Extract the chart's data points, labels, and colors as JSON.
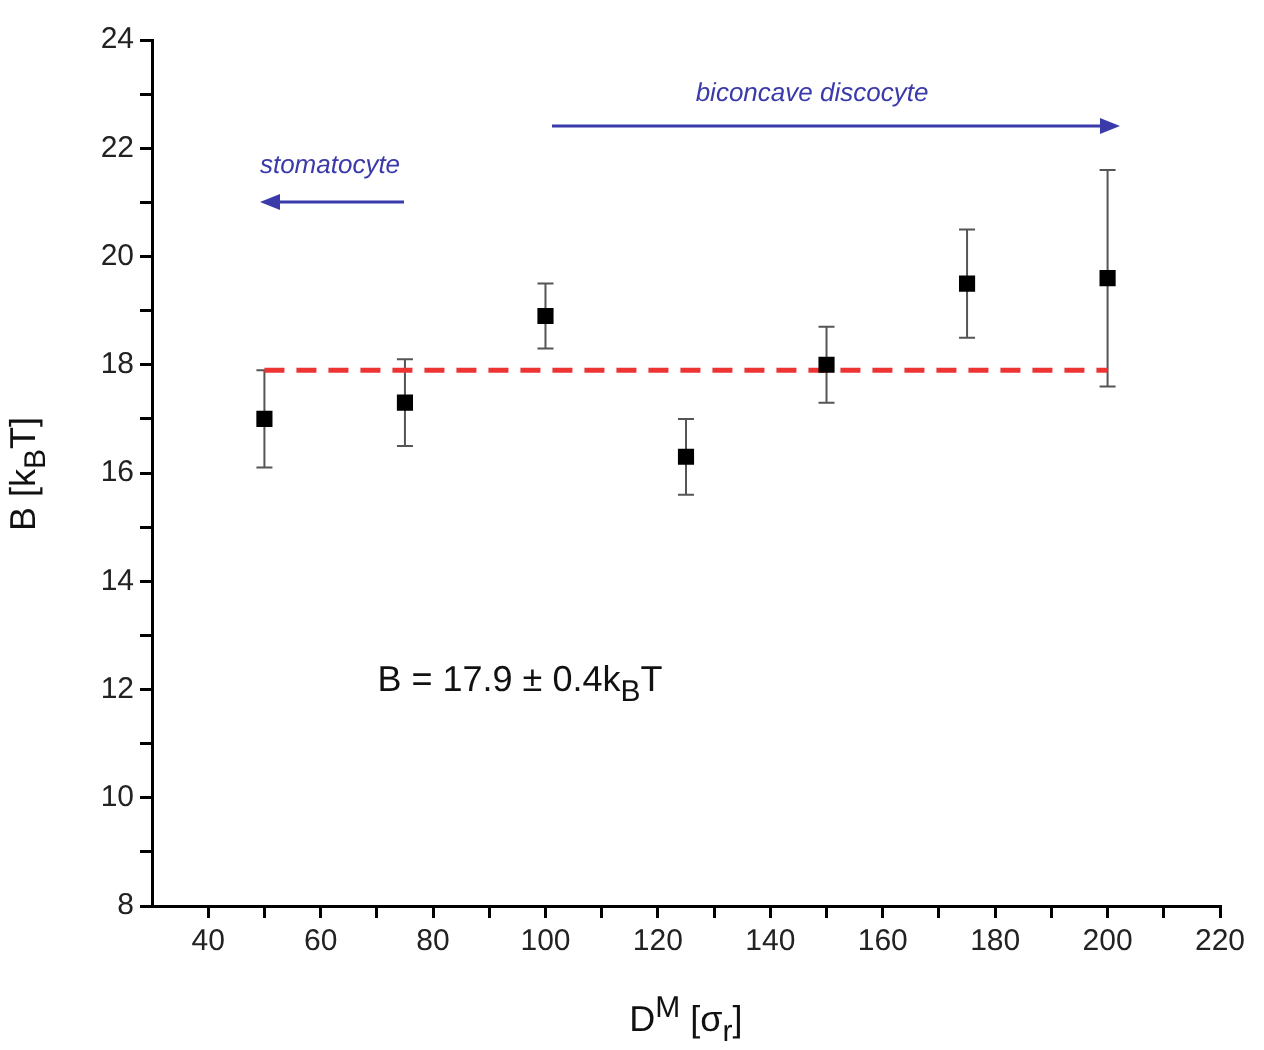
{
  "chart_data": {
    "type": "scatter",
    "xlabel": "D$^{M}$ [σ$_{r}$]",
    "ylabel": "B [k$_{B}$T]",
    "xlim": [
      30,
      220
    ],
    "ylim": [
      8,
      24
    ],
    "xticks": [
      40,
      {
        "value": 50,
        "label": null
      },
      60,
      {
        "value": 70,
        "label": null
      },
      80,
      {
        "value": 90,
        "label": null
      },
      100,
      {
        "value": 110,
        "label": null
      },
      120,
      {
        "value": 130,
        "label": null
      },
      140,
      {
        "value": 150,
        "label": null
      },
      160,
      {
        "value": 170,
        "label": null
      },
      180,
      {
        "value": 190,
        "label": null
      },
      200,
      {
        "value": 210,
        "label": null
      },
      220
    ],
    "yticks": [
      8,
      {
        "value": 9,
        "label": null
      },
      10,
      {
        "value": 11,
        "label": null
      },
      12,
      {
        "value": 13,
        "label": null
      },
      14,
      {
        "value": 15,
        "label": null
      },
      16,
      {
        "value": 17,
        "label": null
      },
      18,
      {
        "value": 19,
        "label": null
      },
      20,
      {
        "value": 21,
        "label": null
      },
      22,
      {
        "value": 23,
        "label": null
      },
      24
    ],
    "grid": false,
    "legend": false,
    "series": [
      {
        "type": "scatter",
        "color": "#000000",
        "marker": "square",
        "x": [
          50,
          75,
          100,
          125,
          150,
          175,
          200
        ],
        "values": [
          17.0,
          17.3,
          18.9,
          16.3,
          18.0,
          19.5,
          19.6
        ],
        "errors": [
          [
            16.1,
            17.9
          ],
          [
            16.5,
            18.1
          ],
          [
            18.3,
            19.5
          ],
          [
            15.6,
            17.0
          ],
          [
            17.3,
            18.7
          ],
          [
            18.5,
            20.5
          ],
          [
            17.6,
            21.6
          ]
        ]
      },
      {
        "type": "line",
        "color": "#ee3333",
        "marker": "none",
        "line_style": "dashed",
        "x": [
          50,
          200
        ],
        "values": [
          17.9,
          17.9
        ]
      }
    ],
    "annotations": [
      "stomatocyte",
      "biconcave discocyte",
      "B = 17.9 ± 0.4k$_{B}$T"
    ]
  }
}
